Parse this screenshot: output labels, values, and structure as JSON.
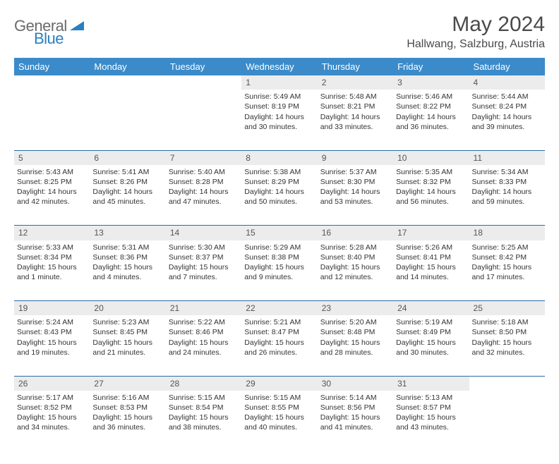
{
  "brand": {
    "part1": "General",
    "part2": "Blue"
  },
  "title": "May 2024",
  "location": "Hallwang, Salzburg, Austria",
  "accent_color": "#3b8bca",
  "daynum_bg": "#ececec",
  "row_border": "#2a6da8",
  "text_color": "#333333",
  "days": [
    "Sunday",
    "Monday",
    "Tuesday",
    "Wednesday",
    "Thursday",
    "Friday",
    "Saturday"
  ],
  "weeks": [
    [
      null,
      null,
      null,
      {
        "n": "1",
        "sr": "Sunrise: 5:49 AM",
        "ss": "Sunset: 8:19 PM",
        "d1": "Daylight: 14 hours",
        "d2": "and 30 minutes."
      },
      {
        "n": "2",
        "sr": "Sunrise: 5:48 AM",
        "ss": "Sunset: 8:21 PM",
        "d1": "Daylight: 14 hours",
        "d2": "and 33 minutes."
      },
      {
        "n": "3",
        "sr": "Sunrise: 5:46 AM",
        "ss": "Sunset: 8:22 PM",
        "d1": "Daylight: 14 hours",
        "d2": "and 36 minutes."
      },
      {
        "n": "4",
        "sr": "Sunrise: 5:44 AM",
        "ss": "Sunset: 8:24 PM",
        "d1": "Daylight: 14 hours",
        "d2": "and 39 minutes."
      }
    ],
    [
      {
        "n": "5",
        "sr": "Sunrise: 5:43 AM",
        "ss": "Sunset: 8:25 PM",
        "d1": "Daylight: 14 hours",
        "d2": "and 42 minutes."
      },
      {
        "n": "6",
        "sr": "Sunrise: 5:41 AM",
        "ss": "Sunset: 8:26 PM",
        "d1": "Daylight: 14 hours",
        "d2": "and 45 minutes."
      },
      {
        "n": "7",
        "sr": "Sunrise: 5:40 AM",
        "ss": "Sunset: 8:28 PM",
        "d1": "Daylight: 14 hours",
        "d2": "and 47 minutes."
      },
      {
        "n": "8",
        "sr": "Sunrise: 5:38 AM",
        "ss": "Sunset: 8:29 PM",
        "d1": "Daylight: 14 hours",
        "d2": "and 50 minutes."
      },
      {
        "n": "9",
        "sr": "Sunrise: 5:37 AM",
        "ss": "Sunset: 8:30 PM",
        "d1": "Daylight: 14 hours",
        "d2": "and 53 minutes."
      },
      {
        "n": "10",
        "sr": "Sunrise: 5:35 AM",
        "ss": "Sunset: 8:32 PM",
        "d1": "Daylight: 14 hours",
        "d2": "and 56 minutes."
      },
      {
        "n": "11",
        "sr": "Sunrise: 5:34 AM",
        "ss": "Sunset: 8:33 PM",
        "d1": "Daylight: 14 hours",
        "d2": "and 59 minutes."
      }
    ],
    [
      {
        "n": "12",
        "sr": "Sunrise: 5:33 AM",
        "ss": "Sunset: 8:34 PM",
        "d1": "Daylight: 15 hours",
        "d2": "and 1 minute."
      },
      {
        "n": "13",
        "sr": "Sunrise: 5:31 AM",
        "ss": "Sunset: 8:36 PM",
        "d1": "Daylight: 15 hours",
        "d2": "and 4 minutes."
      },
      {
        "n": "14",
        "sr": "Sunrise: 5:30 AM",
        "ss": "Sunset: 8:37 PM",
        "d1": "Daylight: 15 hours",
        "d2": "and 7 minutes."
      },
      {
        "n": "15",
        "sr": "Sunrise: 5:29 AM",
        "ss": "Sunset: 8:38 PM",
        "d1": "Daylight: 15 hours",
        "d2": "and 9 minutes."
      },
      {
        "n": "16",
        "sr": "Sunrise: 5:28 AM",
        "ss": "Sunset: 8:40 PM",
        "d1": "Daylight: 15 hours",
        "d2": "and 12 minutes."
      },
      {
        "n": "17",
        "sr": "Sunrise: 5:26 AM",
        "ss": "Sunset: 8:41 PM",
        "d1": "Daylight: 15 hours",
        "d2": "and 14 minutes."
      },
      {
        "n": "18",
        "sr": "Sunrise: 5:25 AM",
        "ss": "Sunset: 8:42 PM",
        "d1": "Daylight: 15 hours",
        "d2": "and 17 minutes."
      }
    ],
    [
      {
        "n": "19",
        "sr": "Sunrise: 5:24 AM",
        "ss": "Sunset: 8:43 PM",
        "d1": "Daylight: 15 hours",
        "d2": "and 19 minutes."
      },
      {
        "n": "20",
        "sr": "Sunrise: 5:23 AM",
        "ss": "Sunset: 8:45 PM",
        "d1": "Daylight: 15 hours",
        "d2": "and 21 minutes."
      },
      {
        "n": "21",
        "sr": "Sunrise: 5:22 AM",
        "ss": "Sunset: 8:46 PM",
        "d1": "Daylight: 15 hours",
        "d2": "and 24 minutes."
      },
      {
        "n": "22",
        "sr": "Sunrise: 5:21 AM",
        "ss": "Sunset: 8:47 PM",
        "d1": "Daylight: 15 hours",
        "d2": "and 26 minutes."
      },
      {
        "n": "23",
        "sr": "Sunrise: 5:20 AM",
        "ss": "Sunset: 8:48 PM",
        "d1": "Daylight: 15 hours",
        "d2": "and 28 minutes."
      },
      {
        "n": "24",
        "sr": "Sunrise: 5:19 AM",
        "ss": "Sunset: 8:49 PM",
        "d1": "Daylight: 15 hours",
        "d2": "and 30 minutes."
      },
      {
        "n": "25",
        "sr": "Sunrise: 5:18 AM",
        "ss": "Sunset: 8:50 PM",
        "d1": "Daylight: 15 hours",
        "d2": "and 32 minutes."
      }
    ],
    [
      {
        "n": "26",
        "sr": "Sunrise: 5:17 AM",
        "ss": "Sunset: 8:52 PM",
        "d1": "Daylight: 15 hours",
        "d2": "and 34 minutes."
      },
      {
        "n": "27",
        "sr": "Sunrise: 5:16 AM",
        "ss": "Sunset: 8:53 PM",
        "d1": "Daylight: 15 hours",
        "d2": "and 36 minutes."
      },
      {
        "n": "28",
        "sr": "Sunrise: 5:15 AM",
        "ss": "Sunset: 8:54 PM",
        "d1": "Daylight: 15 hours",
        "d2": "and 38 minutes."
      },
      {
        "n": "29",
        "sr": "Sunrise: 5:15 AM",
        "ss": "Sunset: 8:55 PM",
        "d1": "Daylight: 15 hours",
        "d2": "and 40 minutes."
      },
      {
        "n": "30",
        "sr": "Sunrise: 5:14 AM",
        "ss": "Sunset: 8:56 PM",
        "d1": "Daylight: 15 hours",
        "d2": "and 41 minutes."
      },
      {
        "n": "31",
        "sr": "Sunrise: 5:13 AM",
        "ss": "Sunset: 8:57 PM",
        "d1": "Daylight: 15 hours",
        "d2": "and 43 minutes."
      },
      null
    ]
  ]
}
